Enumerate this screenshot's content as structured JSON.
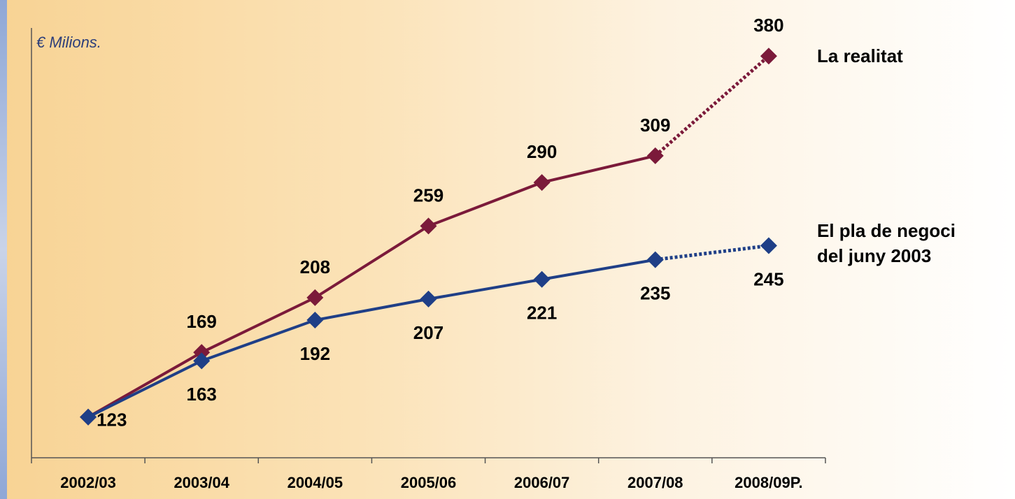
{
  "chart_data": {
    "type": "line",
    "y_axis_label": "€ Milions.",
    "categories": [
      "2002/03",
      "2003/04",
      "2004/05",
      "2005/06",
      "2006/07",
      "2007/08",
      "2008/09P."
    ],
    "series": [
      {
        "name": "La realitat",
        "color": "#7b1a3a",
        "values": [
          123,
          169,
          208,
          259,
          290,
          309,
          380
        ]
      },
      {
        "name": "El pla de negoci del juny 2003",
        "color": "#1f3f87",
        "values": [
          123,
          163,
          192,
          207,
          221,
          235,
          245
        ]
      }
    ],
    "ylim": [
      94,
      400
    ],
    "dotted_last_segment": true
  }
}
